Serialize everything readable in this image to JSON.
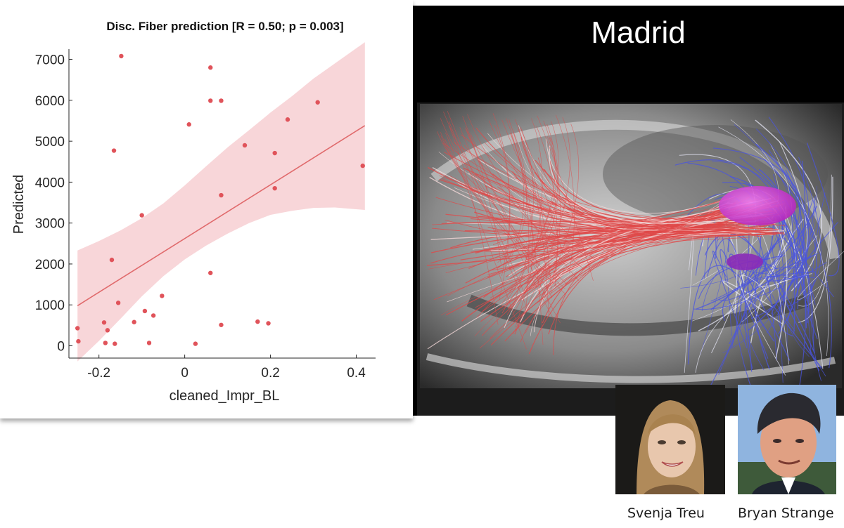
{
  "chart_data": {
    "type": "scatter",
    "title": "Disc. Fiber prediction [R = 0.50; p = 0.003]",
    "xlabel": "cleaned_Impr_BL",
    "ylabel": "Predicted",
    "xlim": [
      -0.27,
      0.445
    ],
    "ylim": [
      -300,
      7250
    ],
    "xticks": [
      -0.2,
      0,
      0.2,
      0.4
    ],
    "xtick_labels": [
      "-0.2",
      "0",
      "0.2",
      "0.4"
    ],
    "yticks": [
      0,
      1000,
      2000,
      3000,
      4000,
      5000,
      6000,
      7000
    ],
    "ytick_labels": [
      "0",
      "1000",
      "2000",
      "3000",
      "4000",
      "5000",
      "6000",
      "7000"
    ],
    "points": [
      {
        "x": -0.25,
        "y": 430
      },
      {
        "x": -0.248,
        "y": 110
      },
      {
        "x": -0.188,
        "y": 570
      },
      {
        "x": -0.185,
        "y": 70
      },
      {
        "x": -0.18,
        "y": 380
      },
      {
        "x": -0.17,
        "y": 2100
      },
      {
        "x": -0.165,
        "y": 4770
      },
      {
        "x": -0.163,
        "y": 50
      },
      {
        "x": -0.155,
        "y": 1050
      },
      {
        "x": -0.148,
        "y": 7080
      },
      {
        "x": -0.118,
        "y": 580
      },
      {
        "x": -0.1,
        "y": 3190
      },
      {
        "x": -0.093,
        "y": 850
      },
      {
        "x": -0.083,
        "y": 70
      },
      {
        "x": -0.073,
        "y": 740
      },
      {
        "x": -0.053,
        "y": 1220
      },
      {
        "x": 0.01,
        "y": 5410
      },
      {
        "x": 0.025,
        "y": 50
      },
      {
        "x": 0.06,
        "y": 6800
      },
      {
        "x": 0.06,
        "y": 5990
      },
      {
        "x": 0.06,
        "y": 1780
      },
      {
        "x": 0.085,
        "y": 5990
      },
      {
        "x": 0.085,
        "y": 3680
      },
      {
        "x": 0.085,
        "y": 510
      },
      {
        "x": 0.14,
        "y": 4900
      },
      {
        "x": 0.17,
        "y": 590
      },
      {
        "x": 0.195,
        "y": 550
      },
      {
        "x": 0.21,
        "y": 4710
      },
      {
        "x": 0.21,
        "y": 3850
      },
      {
        "x": 0.24,
        "y": 5530
      },
      {
        "x": 0.31,
        "y": 5950
      },
      {
        "x": 0.415,
        "y": 4400
      }
    ],
    "fit_line": {
      "x": [
        -0.25,
        0.42
      ],
      "y": [
        980,
        5380
      ]
    },
    "confidence_band": {
      "x": [
        -0.25,
        -0.2,
        -0.15,
        -0.1,
        -0.05,
        0.0,
        0.05,
        0.1,
        0.15,
        0.2,
        0.25,
        0.3,
        0.35,
        0.42
      ],
      "upper": [
        2330,
        2560,
        2820,
        3120,
        3480,
        3920,
        4390,
        4850,
        5270,
        5700,
        6100,
        6530,
        6900,
        7420
      ],
      "lower": [
        -380,
        120,
        660,
        1210,
        1700,
        2110,
        2450,
        2740,
        3000,
        3200,
        3300,
        3370,
        3380,
        3320
      ]
    },
    "colors": {
      "points": "#e0535a",
      "fit_line": "#e06a6c",
      "band": "#f7cfd2",
      "axis": "#262626"
    }
  },
  "brain_panel": {
    "title": "Madrid",
    "colors": {
      "tract_red": "#e04848",
      "tract_blue": "#4a54e0",
      "target_magenta": "#d23ad8",
      "target_purple": "#8a2ab8"
    }
  },
  "people": [
    {
      "name": "Svenja Treu",
      "icon": "portrait-photo"
    },
    {
      "name": "Bryan Strange",
      "icon": "portrait-photo"
    }
  ]
}
